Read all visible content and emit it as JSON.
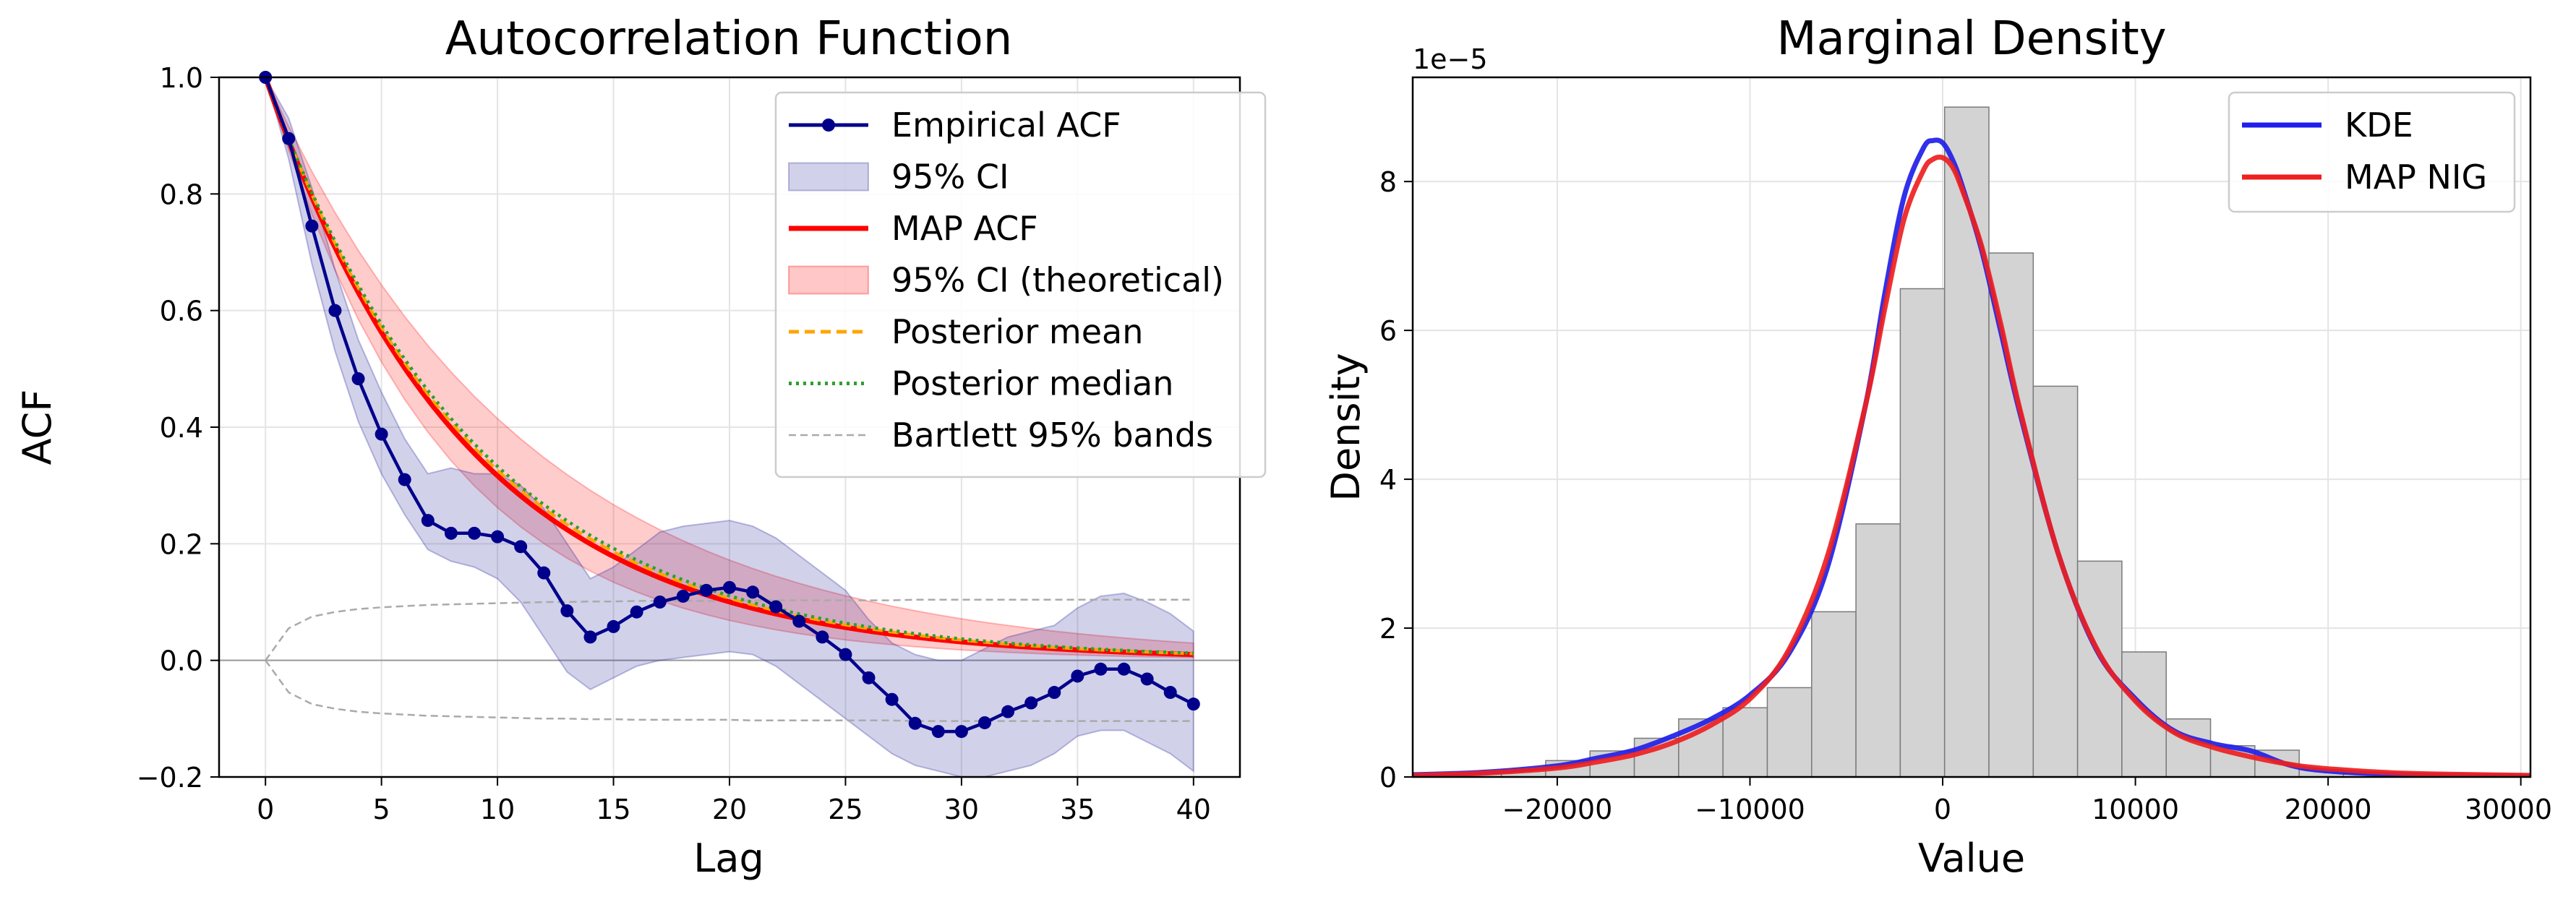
{
  "chart_data": [
    {
      "type": "line",
      "title": "Autocorrelation Function",
      "xlabel": "Lag",
      "ylabel": "ACF",
      "xlim": [
        -2,
        42
      ],
      "ylim": [
        -0.2,
        1.0
      ],
      "xticks": [
        0,
        5,
        10,
        15,
        20,
        25,
        30,
        35,
        40
      ],
      "xtick_labels": [
        "0",
        "5",
        "10",
        "15",
        "20",
        "25",
        "30",
        "35",
        "40"
      ],
      "yticks": [
        -0.2,
        0.0,
        0.2,
        0.4,
        0.6,
        0.8,
        1.0
      ],
      "ytick_labels": [
        "−0.2",
        "0.0",
        "0.2",
        "0.4",
        "0.6",
        "0.8",
        "1.0"
      ],
      "grid": true,
      "legend_position": "top-right",
      "x": [
        0,
        1,
        2,
        3,
        4,
        5,
        6,
        7,
        8,
        9,
        10,
        11,
        12,
        13,
        14,
        15,
        16,
        17,
        18,
        19,
        20,
        21,
        22,
        23,
        24,
        25,
        26,
        27,
        28,
        29,
        30,
        31,
        32,
        33,
        34,
        35,
        36,
        37,
        38,
        39,
        40
      ],
      "series": [
        {
          "name": "Empirical ACF",
          "color": "#00008b",
          "style": "line-marker",
          "values": [
            1.0,
            0.895,
            0.745,
            0.6,
            0.483,
            0.388,
            0.31,
            0.24,
            0.218,
            0.218,
            0.212,
            0.195,
            0.15,
            0.085,
            0.04,
            0.058,
            0.083,
            0.1,
            0.11,
            0.12,
            0.125,
            0.117,
            0.092,
            0.067,
            0.04,
            0.01,
            -0.03,
            -0.067,
            -0.108,
            -0.122,
            -0.122,
            -0.107,
            -0.088,
            -0.073,
            -0.055,
            -0.027,
            -0.015,
            -0.015,
            -0.032,
            -0.055,
            -0.075
          ]
        },
        {
          "name": "95% CI",
          "color": "#6a6ac4",
          "style": "band",
          "lower": [
            1.0,
            0.86,
            0.68,
            0.53,
            0.41,
            0.32,
            0.25,
            0.19,
            0.17,
            0.16,
            0.14,
            0.1,
            0.04,
            -0.02,
            -0.05,
            -0.03,
            -0.01,
            0.0,
            0.005,
            0.01,
            0.015,
            0.01,
            -0.01,
            -0.04,
            -0.07,
            -0.1,
            -0.13,
            -0.16,
            -0.18,
            -0.19,
            -0.2,
            -0.2,
            -0.19,
            -0.18,
            -0.16,
            -0.13,
            -0.12,
            -0.12,
            -0.14,
            -0.16,
            -0.19
          ],
          "upper": [
            1.0,
            0.93,
            0.81,
            0.67,
            0.55,
            0.46,
            0.38,
            0.32,
            0.33,
            0.32,
            0.32,
            0.3,
            0.26,
            0.2,
            0.14,
            0.16,
            0.19,
            0.22,
            0.23,
            0.235,
            0.24,
            0.23,
            0.21,
            0.18,
            0.15,
            0.12,
            0.07,
            0.03,
            0.01,
            0.0,
            0.0,
            0.02,
            0.04,
            0.05,
            0.06,
            0.09,
            0.11,
            0.115,
            0.1,
            0.08,
            0.05
          ]
        },
        {
          "name": "MAP ACF",
          "color": "#ff0000",
          "style": "line",
          "decay_rate": 0.115
        },
        {
          "name": "95% CI (theoretical)",
          "color": "#ff8080",
          "style": "band",
          "lower_decay_rate": 0.134,
          "upper_decay_rate": 0.088
        },
        {
          "name": "Posterior mean",
          "color": "#ffa500",
          "style": "dashed",
          "decay_rate": 0.112
        },
        {
          "name": "Posterior median",
          "color": "#2ca02c",
          "style": "dotted",
          "decay_rate": 0.11
        },
        {
          "name": "Bartlett 95% bands",
          "color": "#aaaaaa",
          "style": "thin-dashed",
          "values": [
            0.0,
            0.055,
            0.075,
            0.083,
            0.088,
            0.091,
            0.093,
            0.095,
            0.096,
            0.097,
            0.098,
            0.099,
            0.1,
            0.1,
            0.101,
            0.101,
            0.102,
            0.102,
            0.102,
            0.102,
            0.102,
            0.103,
            0.103,
            0.103,
            0.103,
            0.103,
            0.103,
            0.103,
            0.104,
            0.104,
            0.104,
            0.104,
            0.104,
            0.104,
            0.104,
            0.104,
            0.104,
            0.104,
            0.104,
            0.104,
            0.104
          ]
        }
      ]
    },
    {
      "type": "histogram",
      "title": "Marginal Density",
      "xlabel": "Value",
      "ylabel": "Density",
      "offset_text": "1e−5",
      "xlim": [
        -27500,
        30500
      ],
      "ylim": [
        0,
        9.4
      ],
      "y_scale_exponent": -5,
      "xticks": [
        -20000,
        -10000,
        0,
        10000,
        20000,
        30000
      ],
      "xtick_labels": [
        "−20000",
        "−10000",
        "0",
        "10000",
        "20000",
        "30000"
      ],
      "yticks": [
        0,
        2,
        4,
        6,
        8
      ],
      "ytick_labels": [
        "0",
        "2",
        "4",
        "6",
        "8"
      ],
      "grid": true,
      "legend_position": "top-right",
      "histogram": {
        "bin_edges": [
          -27500,
          -25200,
          -22900,
          -20600,
          -18300,
          -16000,
          -13700,
          -11400,
          -9100,
          -6800,
          -4500,
          -2200,
          100,
          2400,
          4700,
          7000,
          9300,
          11600,
          13900,
          16200,
          18500,
          20800,
          23100,
          25400,
          27700,
          30000
        ],
        "values": [
          0.03,
          0.06,
          0.1,
          0.22,
          0.35,
          0.52,
          0.78,
          0.93,
          1.2,
          2.22,
          3.4,
          6.56,
          9.0,
          7.04,
          5.25,
          2.9,
          1.68,
          0.78,
          0.42,
          0.36,
          0.1,
          0.05,
          0.03,
          0.02,
          0.02
        ]
      },
      "series": [
        {
          "name": "KDE",
          "color": "#2020e8",
          "x": [
            -27500,
            -24000,
            -20000,
            -18000,
            -16000,
            -14000,
            -12000,
            -10000,
            -8000,
            -6000,
            -4000,
            -3000,
            -2000,
            -1000,
            -500,
            0,
            500,
            1000,
            2000,
            3000,
            4000,
            6000,
            8000,
            10000,
            12000,
            14000,
            16000,
            18000,
            20000,
            24000,
            30500
          ],
          "values": [
            0.03,
            0.06,
            0.15,
            0.25,
            0.36,
            0.55,
            0.78,
            1.1,
            1.65,
            2.8,
            5.0,
            6.5,
            7.8,
            8.45,
            8.55,
            8.52,
            8.3,
            7.95,
            7.1,
            6.0,
            4.9,
            3.0,
            1.7,
            1.05,
            0.62,
            0.45,
            0.35,
            0.16,
            0.08,
            0.03,
            0.01
          ]
        },
        {
          "name": "MAP NIG",
          "color": "#ee2020",
          "x": [
            -27500,
            -24000,
            -20000,
            -18000,
            -16000,
            -14000,
            -12000,
            -10000,
            -8000,
            -6000,
            -4000,
            -3000,
            -2000,
            -1000,
            -500,
            0,
            500,
            1000,
            2000,
            3000,
            4000,
            6000,
            8000,
            10000,
            12000,
            14000,
            16000,
            18000,
            20000,
            24000,
            30500
          ],
          "values": [
            0.02,
            0.05,
            0.12,
            0.2,
            0.3,
            0.46,
            0.7,
            1.05,
            1.7,
            2.95,
            5.0,
            6.3,
            7.5,
            8.15,
            8.3,
            8.32,
            8.2,
            7.9,
            7.15,
            6.1,
            4.95,
            3.0,
            1.72,
            1.02,
            0.6,
            0.4,
            0.27,
            0.17,
            0.11,
            0.05,
            0.02
          ]
        }
      ]
    }
  ]
}
